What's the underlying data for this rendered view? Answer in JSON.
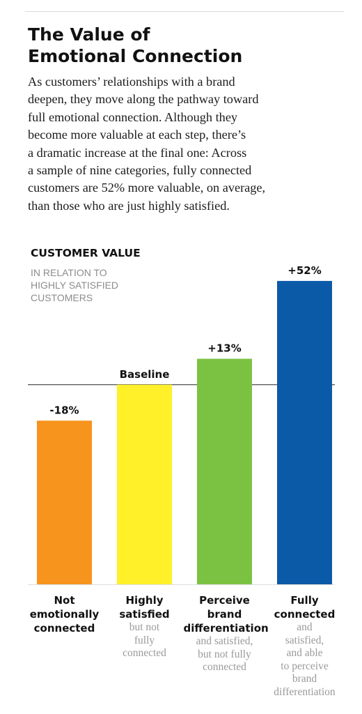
{
  "header": {
    "title_lines": [
      "The Value of",
      "Emotional Connection"
    ],
    "intro_lines": [
      "As customers’ relationships with a brand",
      "deepen, they move along the pathway toward",
      "full emotional connection. Although they",
      "become more valuable at each step, there’s",
      "a dramatic increase at the final one: Across",
      "a sample of nine categories, fully connected",
      "customers are 52% more valuable, on average,",
      "than those who are just highly satisfied."
    ]
  },
  "chart_data": {
    "type": "bar",
    "ylabel": "CUSTOMER VALUE",
    "ylabel_sub_lines": [
      "IN RELATION TO",
      "HIGHLY SATISFIED",
      "CUSTOMERS"
    ],
    "categories": [
      "Not emotionally connected",
      "Highly satisfied",
      "Perceive brand differentiation",
      "Fully connected"
    ],
    "values": [
      -18,
      0,
      13,
      52
    ],
    "data_labels": [
      "-18%",
      "Baseline",
      "+13%",
      "+52%"
    ],
    "colors": [
      "#f7941d",
      "#fff02a",
      "#7cc242",
      "#0b5aa7"
    ],
    "baseline_value": 0,
    "ylim": [
      -100,
      60
    ],
    "category_labels": [
      {
        "bold": [
          "Not",
          "emotionally",
          "connected"
        ],
        "light": []
      },
      {
        "bold": [
          "Highly",
          "satisfied"
        ],
        "light": [
          "but not",
          "fully",
          "connected"
        ]
      },
      {
        "bold": [
          "Perceive",
          "brand",
          "differentiation"
        ],
        "light": [
          "and satisfied,",
          "but not fully",
          "connected"
        ]
      },
      {
        "bold": [
          "Fully",
          "connected"
        ],
        "light": [
          "and",
          "satisfied,",
          "and able",
          "to perceive",
          "brand",
          "differentiation"
        ]
      }
    ]
  }
}
